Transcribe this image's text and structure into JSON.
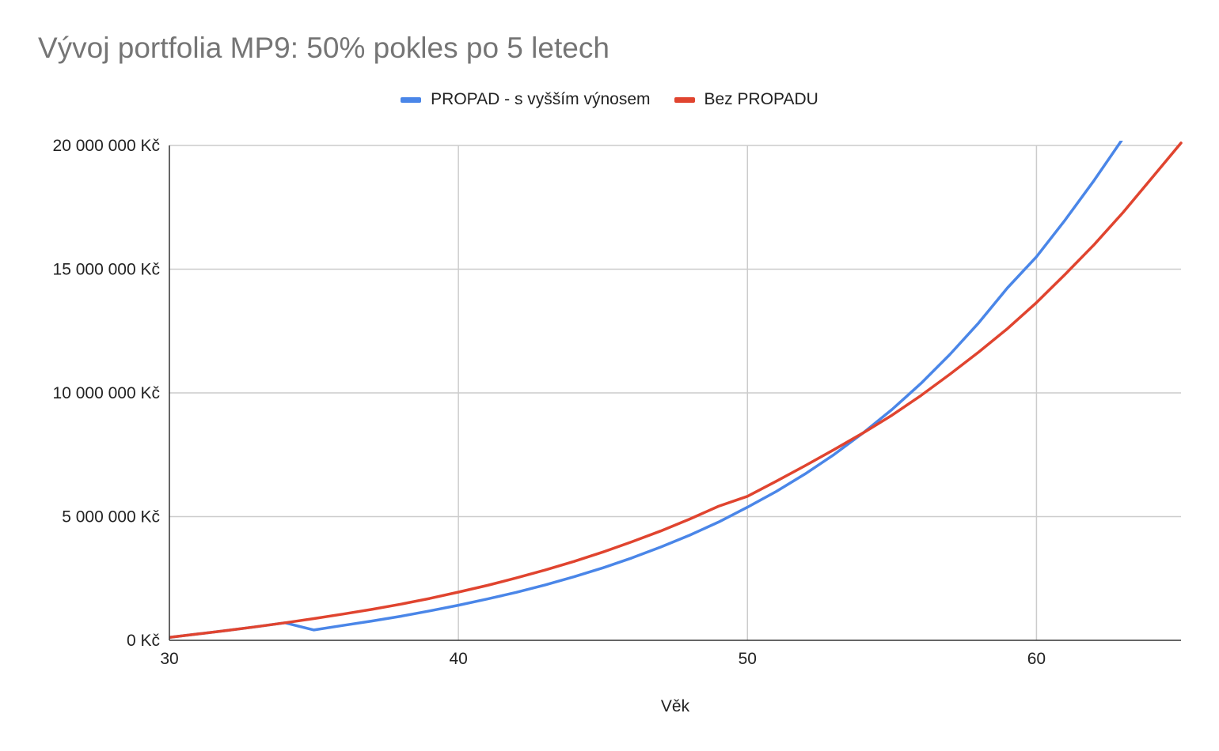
{
  "chart_data": {
    "type": "line",
    "title": "Vývoj portfolia MP9: 50% pokles po 5 letech",
    "xlabel": "Věk",
    "ylabel": "",
    "xlim": [
      30,
      65
    ],
    "ylim": [
      0,
      20000000
    ],
    "x_ticks": [
      30,
      40,
      50,
      60
    ],
    "x_tick_labels": [
      "30",
      "40",
      "50",
      "60"
    ],
    "y_ticks": [
      0,
      5000000,
      10000000,
      15000000,
      20000000
    ],
    "y_tick_labels": [
      "0 Kč",
      "5 000 000 Kč",
      "10 000 000 Kč",
      "15 000 000 Kč",
      "20 000 000 Kč"
    ],
    "grid": true,
    "legend_position": "top-center",
    "x": [
      30,
      31,
      32,
      33,
      34,
      35,
      36,
      37,
      38,
      39,
      40,
      41,
      42,
      43,
      44,
      45,
      46,
      47,
      48,
      49,
      50,
      51,
      52,
      53,
      54,
      55,
      56,
      57,
      58,
      59,
      60,
      61,
      62,
      63,
      64,
      65
    ],
    "series": [
      {
        "name": "PROPAD - s vyšším výnosem",
        "color": "#4a86e8",
        "values": [
          120000,
          260000,
          400000,
          550000,
          710000,
          420000,
          600000,
          780000,
          970000,
          1190000,
          1420000,
          1670000,
          1940000,
          2240000,
          2570000,
          2930000,
          3330000,
          3770000,
          4250000,
          4780000,
          5380000,
          6020000,
          6730000,
          7510000,
          8380000,
          9330000,
          10380000,
          11550000,
          12830000,
          14250000,
          15500000,
          17000000,
          18600000,
          20300000,
          null,
          null
        ]
      },
      {
        "name": "Bez PROPADU",
        "color": "#e0442f",
        "values": [
          120000,
          260000,
          400000,
          550000,
          710000,
          880000,
          1060000,
          1250000,
          1460000,
          1690000,
          1950000,
          2220000,
          2520000,
          2840000,
          3190000,
          3570000,
          3980000,
          4420000,
          4900000,
          5420000,
          5820000,
          6430000,
          7060000,
          7710000,
          8380000,
          9100000,
          9890000,
          10750000,
          11650000,
          12600000,
          13650000,
          14800000,
          16000000,
          17300000,
          18700000,
          20100000
        ]
      }
    ]
  }
}
